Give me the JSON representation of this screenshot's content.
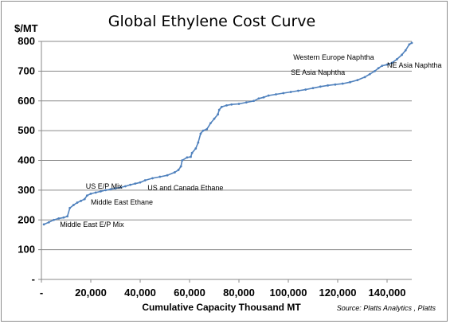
{
  "chart_data": {
    "type": "line",
    "title": "Global Ethylene Cost Curve",
    "ylabel": "$/MT",
    "xlabel": "Cumulative Capacity Thousand  MT",
    "source": "Source: Platts Analytics , Platts",
    "xlim": [
      0,
      150000
    ],
    "ylim": [
      0,
      800
    ],
    "x_ticks": [
      {
        "value": 0,
        "label": "-"
      },
      {
        "value": 20000,
        "label": "20,000"
      },
      {
        "value": 40000,
        "label": "40,000"
      },
      {
        "value": 60000,
        "label": "60,000"
      },
      {
        "value": 80000,
        "label": "80,000"
      },
      {
        "value": 100000,
        "label": "100,000"
      },
      {
        "value": 120000,
        "label": "120,000"
      },
      {
        "value": 140000,
        "label": "140,000"
      }
    ],
    "y_ticks": [
      {
        "value": 0,
        "label": "-"
      },
      {
        "value": 100,
        "label": "100"
      },
      {
        "value": 200,
        "label": "200"
      },
      {
        "value": 300,
        "label": "300"
      },
      {
        "value": 400,
        "label": "400"
      },
      {
        "value": 500,
        "label": "500"
      },
      {
        "value": 600,
        "label": "600"
      },
      {
        "value": 700,
        "label": "700"
      },
      {
        "value": 800,
        "label": "800"
      }
    ],
    "grid": true,
    "series": [
      {
        "color": "#4f81bd",
        "points": [
          [
            1000,
            185
          ],
          [
            3000,
            192
          ],
          [
            5000,
            200
          ],
          [
            7000,
            205
          ],
          [
            9000,
            208
          ],
          [
            10500,
            212
          ],
          [
            11500,
            240
          ],
          [
            13000,
            250
          ],
          [
            14500,
            258
          ],
          [
            16000,
            264
          ],
          [
            17500,
            270
          ],
          [
            18500,
            282
          ],
          [
            20000,
            288
          ],
          [
            22000,
            292
          ],
          [
            24000,
            296
          ],
          [
            26000,
            300
          ],
          [
            28000,
            303
          ],
          [
            30000,
            306
          ],
          [
            32000,
            309
          ],
          [
            34000,
            313
          ],
          [
            36000,
            318
          ],
          [
            38000,
            322
          ],
          [
            40000,
            326
          ],
          [
            42000,
            333
          ],
          [
            45000,
            340
          ],
          [
            48000,
            345
          ],
          [
            51000,
            350
          ],
          [
            54000,
            360
          ],
          [
            55500,
            368
          ],
          [
            56500,
            380
          ],
          [
            57000,
            400
          ],
          [
            59000,
            410
          ],
          [
            60500,
            412
          ],
          [
            61000,
            425
          ],
          [
            62500,
            440
          ],
          [
            63500,
            460
          ],
          [
            64500,
            490
          ],
          [
            65500,
            500
          ],
          [
            67000,
            505
          ],
          [
            68500,
            525
          ],
          [
            70000,
            540
          ],
          [
            71500,
            555
          ],
          [
            72000,
            570
          ],
          [
            73000,
            580
          ],
          [
            75000,
            585
          ],
          [
            77000,
            588
          ],
          [
            80000,
            590
          ],
          [
            83000,
            595
          ],
          [
            86000,
            600
          ],
          [
            88000,
            608
          ],
          [
            90000,
            612
          ],
          [
            92000,
            618
          ],
          [
            95000,
            622
          ],
          [
            98000,
            626
          ],
          [
            101000,
            630
          ],
          [
            104000,
            634
          ],
          [
            107000,
            638
          ],
          [
            110000,
            643
          ],
          [
            113000,
            648
          ],
          [
            116000,
            652
          ],
          [
            119000,
            655
          ],
          [
            122000,
            658
          ],
          [
            125000,
            663
          ],
          [
            128000,
            670
          ],
          [
            131000,
            680
          ],
          [
            133000,
            690
          ],
          [
            135000,
            700
          ],
          [
            136500,
            710
          ],
          [
            138000,
            718
          ],
          [
            140000,
            722
          ],
          [
            142000,
            728
          ],
          [
            144000,
            740
          ],
          [
            146000,
            755
          ],
          [
            147500,
            770
          ],
          [
            149000,
            790
          ],
          [
            150000,
            795
          ]
        ]
      }
    ],
    "annotations": [
      {
        "text": "Middle East E/P Mix",
        "x": 7500,
        "y": 177
      },
      {
        "text": "Middle East Ethane",
        "x": 20000,
        "y": 252
      },
      {
        "text": "US E/P Mix",
        "x": 18000,
        "y": 305
      },
      {
        "text": "US and Canada Ethane",
        "x": 43000,
        "y": 300
      },
      {
        "text": "SE Asia Naphtha",
        "x": 101000,
        "y": 688
      },
      {
        "text": "Western Europe Naphtha",
        "x": 102000,
        "y": 738
      },
      {
        "text": "NE Asia Naphtha",
        "x": 140000,
        "y": 712
      }
    ]
  }
}
